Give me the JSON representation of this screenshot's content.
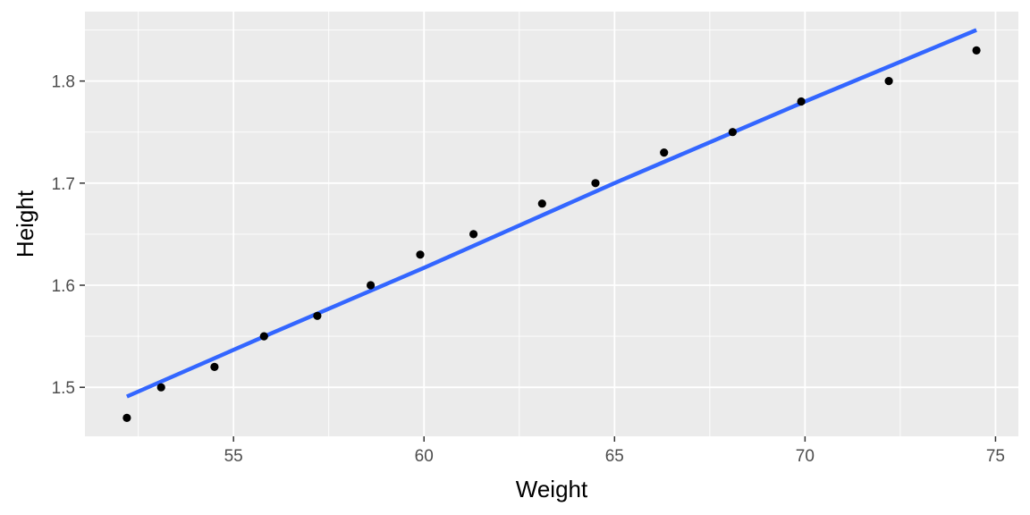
{
  "chart_data": {
    "type": "scatter",
    "xlabel": "Weight",
    "ylabel": "Height",
    "xlim": [
      51.1,
      75.6
    ],
    "ylim": [
      1.452,
      1.868
    ],
    "x_ticks": [
      55,
      60,
      65,
      70,
      75
    ],
    "y_ticks": [
      1.5,
      1.6,
      1.7,
      1.8
    ],
    "x_tick_labels": [
      "55",
      "60",
      "65",
      "70",
      "75"
    ],
    "y_tick_labels": [
      "1.5",
      "1.6",
      "1.7",
      "1.8"
    ],
    "grid": true,
    "series": [
      {
        "kind": "points",
        "x": [
          52.2,
          53.1,
          54.5,
          55.8,
          57.2,
          58.6,
          59.9,
          61.3,
          63.1,
          64.5,
          66.3,
          68.1,
          69.9,
          72.2,
          74.5
        ],
        "y": [
          1.47,
          1.5,
          1.52,
          1.55,
          1.57,
          1.6,
          1.63,
          1.65,
          1.68,
          1.7,
          1.73,
          1.75,
          1.78,
          1.8,
          1.83
        ]
      },
      {
        "kind": "smooth-line",
        "x": [
          52.2,
          56.0,
          60.0,
          65.0,
          70.0,
          74.5
        ],
        "y": [
          1.491,
          1.553,
          1.617,
          1.7,
          1.78,
          1.85
        ]
      }
    ],
    "colors": {
      "panel": "#ebebeb",
      "grid_major": "#ffffff",
      "point": "#000000",
      "line": "#3366ff",
      "tick_text": "#4d4d4d",
      "axis_text": "#000000"
    }
  }
}
